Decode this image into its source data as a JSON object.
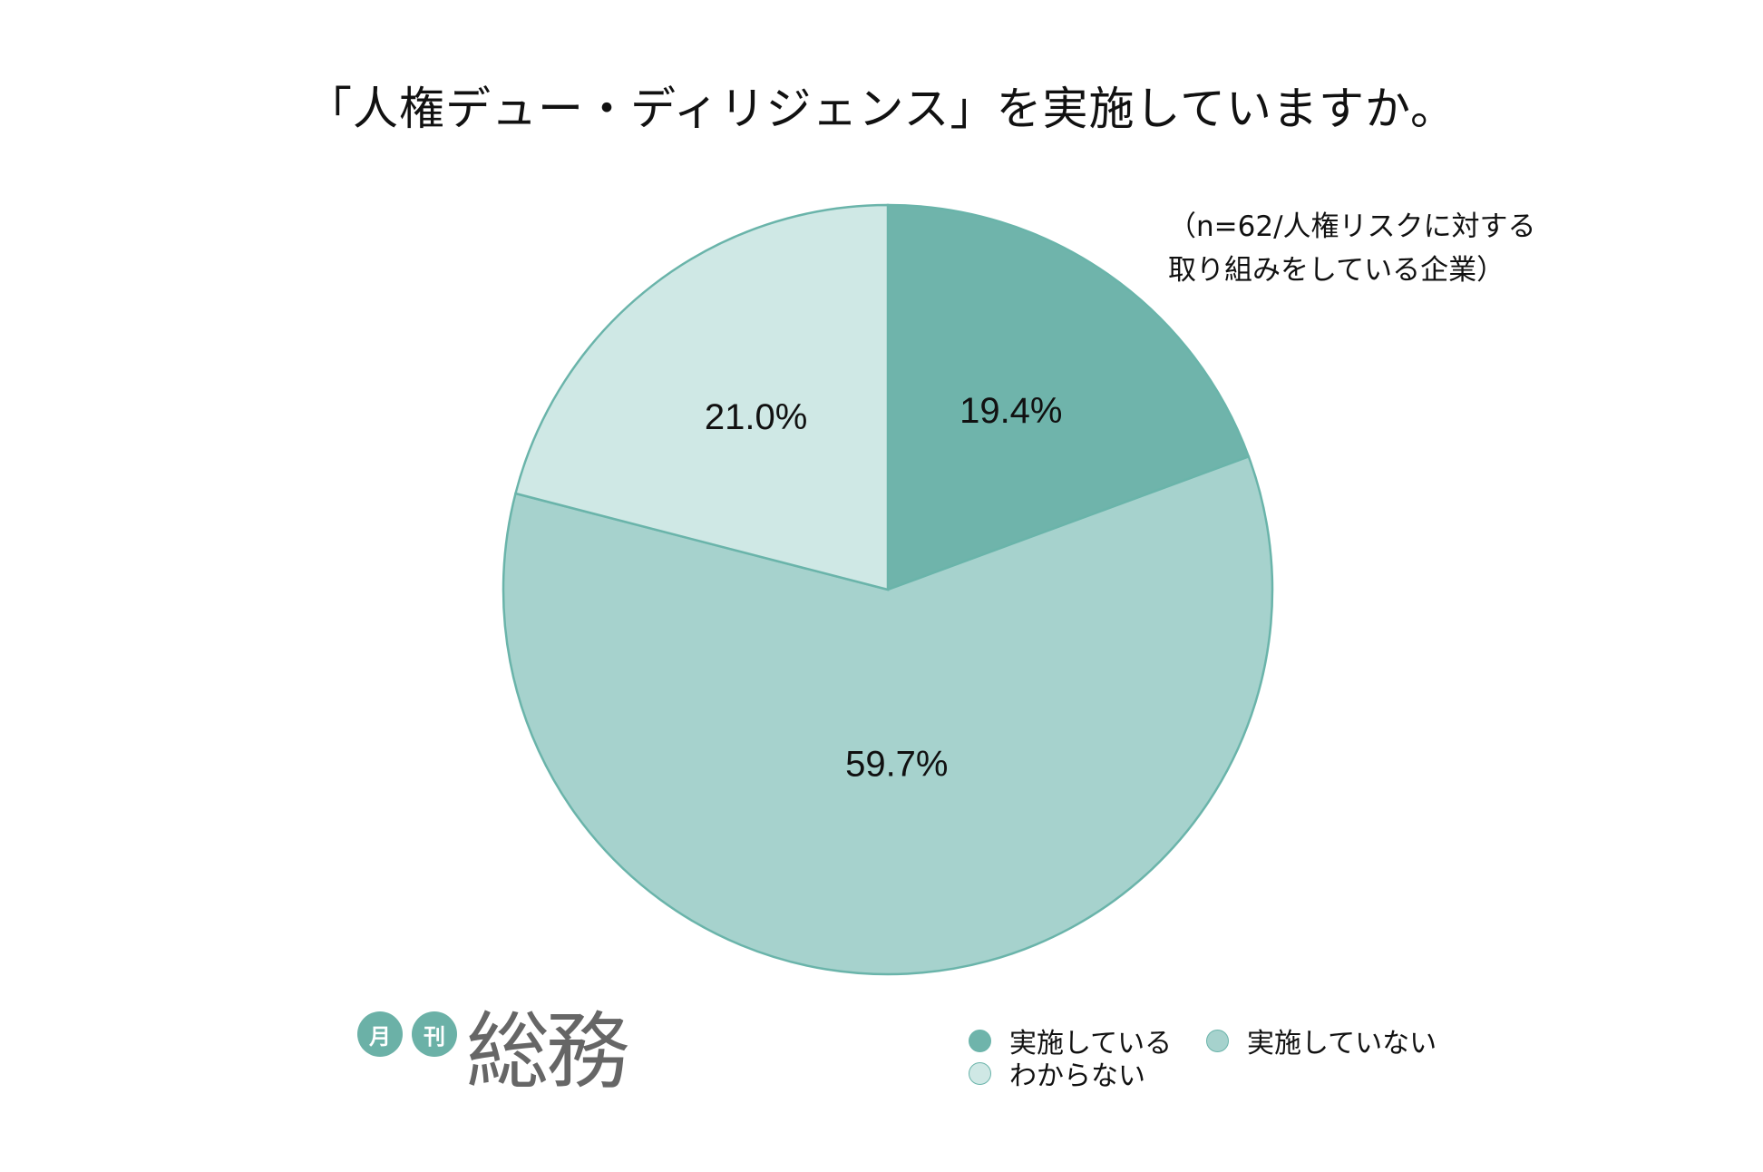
{
  "chart_data": {
    "type": "pie",
    "title": "「人権デュー・ディリジェンス」を実施していますか。",
    "note": "（n=62/人権リスクに対する\n取り組みをしている企業）",
    "slices": [
      {
        "label": "実施している",
        "value": 19.4,
        "display": "19.4%",
        "color": "#6fb4ab"
      },
      {
        "label": "実施していない",
        "value": 59.7,
        "display": "59.7%",
        "color": "#a6d2cd"
      },
      {
        "label": "わからない",
        "value": 21.0,
        "display": "21.0%",
        "color": "#cfe8e5"
      }
    ],
    "edge_color": "#6ab4aa",
    "legend_position": "bottom-right"
  },
  "logo": {
    "badge_1": "月",
    "badge_2": "刊",
    "word": "総務"
  }
}
